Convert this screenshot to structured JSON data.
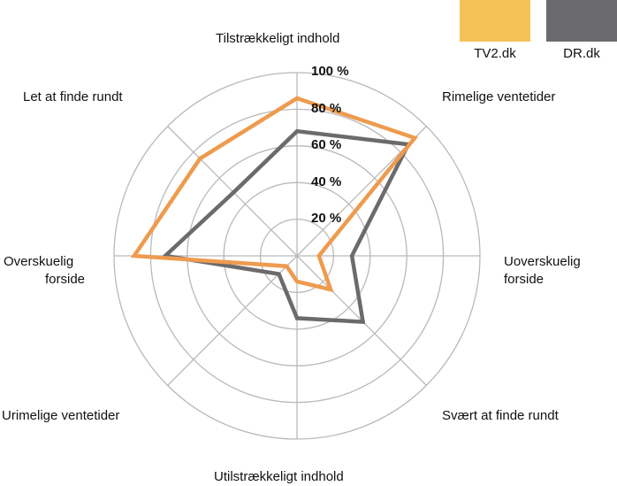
{
  "chart_data": {
    "type": "radar",
    "axes": [
      "Tilstrækkeligt indhold",
      "Rimelige ventetider",
      "Uoverskuelig forside",
      "Svært at finde rundt",
      "Utilstrækkeligt indhold",
      "Urimelige ventetider",
      "Overskuelig forside",
      "Let at finde rundt"
    ],
    "axis_labels_display": {
      "top": "Tilstrækkeligt indhold",
      "ne": "Rimelige ventetider",
      "e1": "Uoverskuelig",
      "e2": "forside",
      "se": "Svært at finde rundt",
      "bottom": "Utilstrækkeligt indhold",
      "sw": "Urimelige ventetider",
      "w1": "Overskuelig",
      "w2": "forside",
      "nw": "Let at finde rundt"
    },
    "rlim": [
      0,
      100
    ],
    "ticks": [
      20,
      40,
      60,
      80,
      100
    ],
    "tick_labels": [
      "20 %",
      "40 %",
      "60 %",
      "80 %",
      "100 %"
    ],
    "grid": true,
    "legend_position": "top-right",
    "series": [
      {
        "name": "TV2.dk",
        "color": "#EE9B4E",
        "legend_color": "#F5C159",
        "values": [
          86,
          91,
          12,
          26,
          14,
          8,
          89,
          75
        ]
      },
      {
        "name": "DR.dk",
        "color": "#6B6B6D",
        "legend_color": "#6B6B6D",
        "values": [
          68,
          86,
          30,
          51,
          34,
          14,
          72,
          49
        ]
      }
    ]
  }
}
